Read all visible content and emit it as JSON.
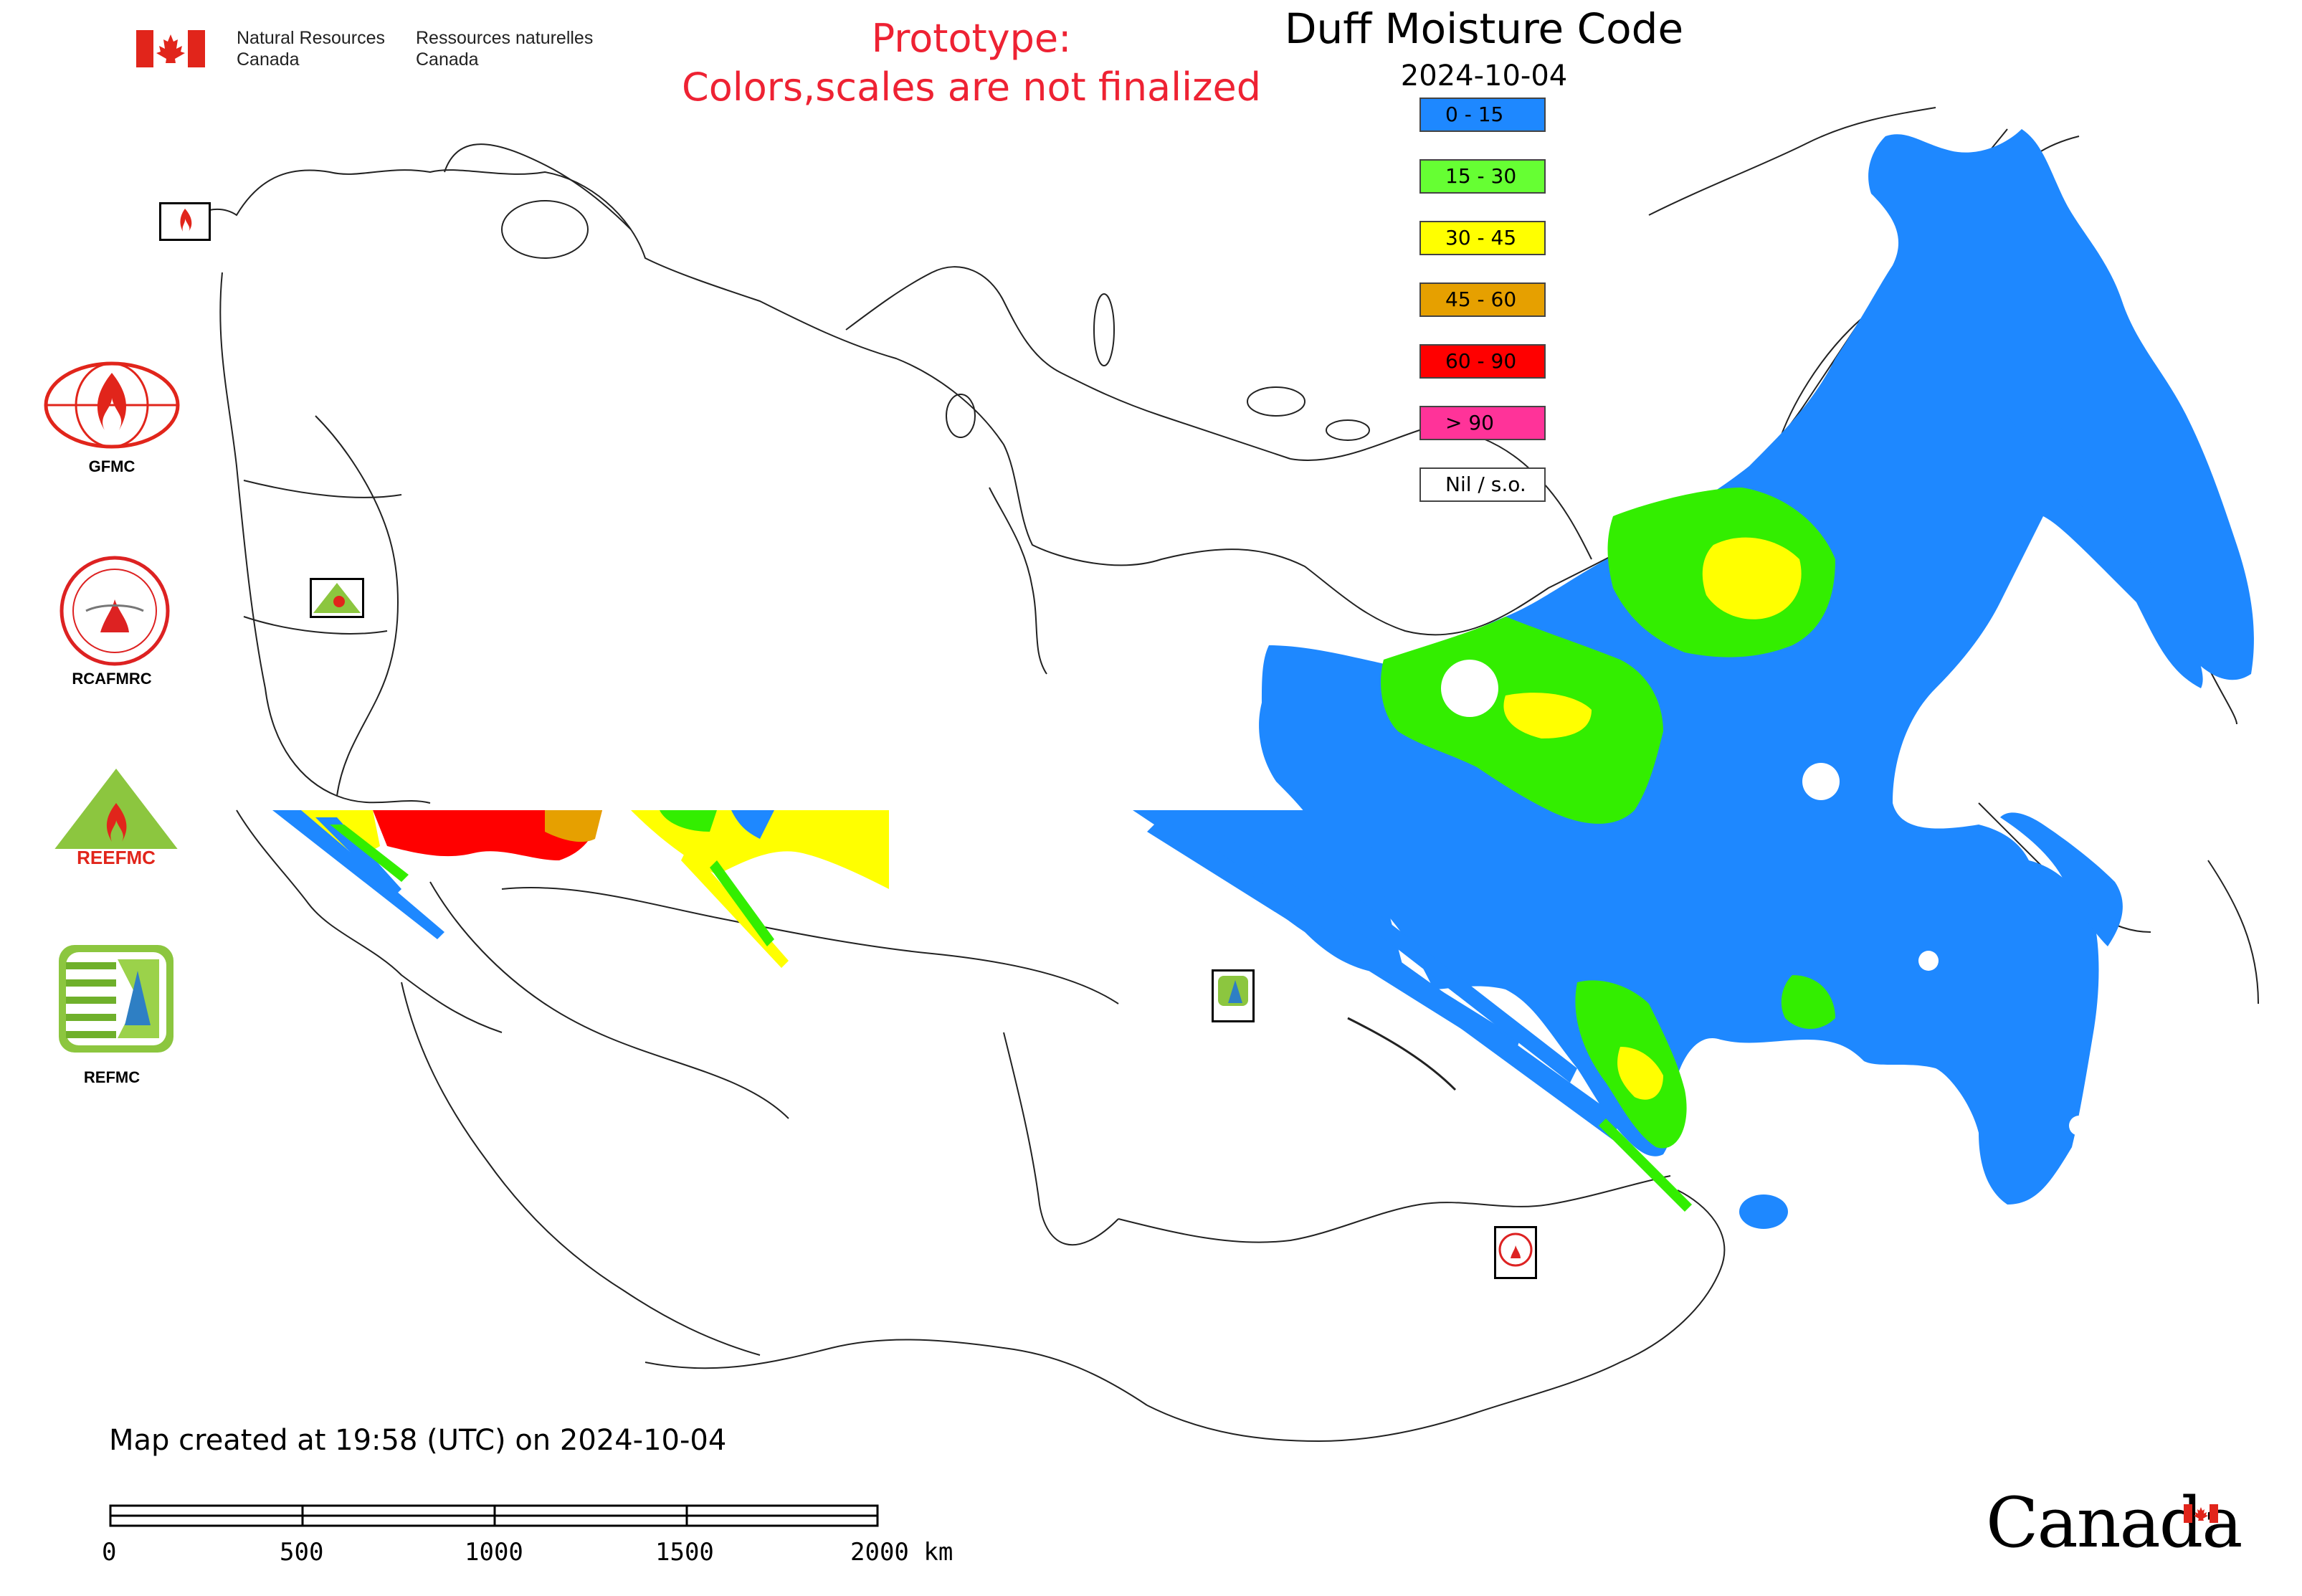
{
  "header": {
    "gov_name_en": "Natural Resources Canada",
    "gov_name_fr": "Ressources naturelles Canada",
    "prototype_line1": "Prototype:",
    "prototype_line2": "Colors,scales are not finalized"
  },
  "map": {
    "title": "Duff Moisture Code",
    "date": "2024-10-04",
    "created_text": "Map created at 19:58 (UTC) on 2024-10-04",
    "icons": [
      "canada-flag-icon",
      "gfmc-logo-icon",
      "rcafmrc-logo-icon",
      "reefmc-logo-icon",
      "refmc-logo-icon"
    ]
  },
  "legend": {
    "items": [
      {
        "label": "0 - 15",
        "color": "#1e88ff"
      },
      {
        "label": "15 - 30",
        "color": "#66ff33"
      },
      {
        "label": "30 - 45",
        "color": "#ffff00"
      },
      {
        "label": "45 - 60",
        "color": "#e6a000"
      },
      {
        "label": "60 - 90",
        "color": "#ff0000"
      },
      {
        "label": "> 90",
        "color": "#ff3399"
      },
      {
        "label": "Nil / s.o.",
        "color": "#ffffff"
      }
    ]
  },
  "logos": {
    "gfmc": "GFMC",
    "rcafmrc": "RCAFMRC",
    "reefmc": "REEFMC",
    "refmc": "REFMC"
  },
  "scale_bar": {
    "labels": [
      "0",
      "500",
      "1000",
      "1500",
      "2000 km"
    ]
  },
  "footer": {
    "wordmark": "Canada"
  }
}
